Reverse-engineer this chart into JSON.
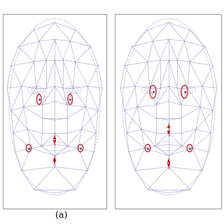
{
  "background": "#ffffff",
  "border_color": "#999999",
  "label": "(a)",
  "face_color": "#7777bb",
  "face_alpha": 0.6,
  "line_width": 0.5,
  "highlight_color": "#cc0000",
  "label_fontsize": 9,
  "panel1_circles": [
    [
      0.35,
      0.56,
      0.045,
      0.055
    ],
    [
      0.65,
      0.56,
      0.045,
      0.055
    ],
    [
      0.25,
      0.3,
      0.05,
      0.04
    ],
    [
      0.75,
      0.3,
      0.05,
      0.04
    ]
  ],
  "panel1_arrows": [
    [
      0.5,
      0.345,
      0.0,
      0.03
    ],
    [
      0.5,
      0.345,
      0.0,
      -0.03
    ],
    [
      0.5,
      0.235,
      0.0,
      0.025
    ],
    [
      0.5,
      0.235,
      0.0,
      -0.025
    ]
  ],
  "panel2_circles": [
    [
      0.35,
      0.6,
      0.06,
      0.07
    ],
    [
      0.65,
      0.6,
      0.06,
      0.07
    ],
    [
      0.3,
      0.3,
      0.05,
      0.04
    ],
    [
      0.7,
      0.3,
      0.05,
      0.04
    ]
  ],
  "panel2_arrows": [
    [
      0.5,
      0.4,
      0.0,
      0.035
    ],
    [
      0.5,
      0.4,
      0.0,
      -0.035
    ],
    [
      0.5,
      0.22,
      0.0,
      0.03
    ],
    [
      0.5,
      0.22,
      0.0,
      -0.03
    ]
  ]
}
